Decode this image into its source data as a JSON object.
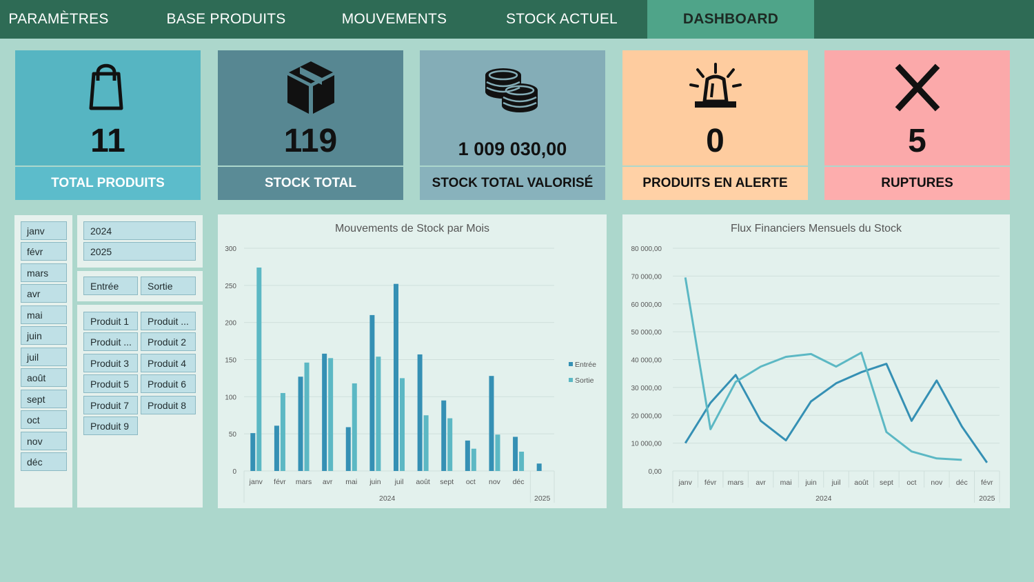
{
  "nav": {
    "tabs": [
      {
        "label": "PARAMÈTRES"
      },
      {
        "label": "BASE PRODUITS"
      },
      {
        "label": "MOUVEMENTS"
      },
      {
        "label": "STOCK ACTUEL"
      },
      {
        "label": "DASHBOARD",
        "active": true
      }
    ]
  },
  "kpis": [
    {
      "value": "11",
      "label": "TOTAL PRODUITS",
      "icon": "shopping-bag-icon",
      "top_color": "#56b5c2",
      "label_color": "#5cbccb",
      "label_text_color": "#ffffff"
    },
    {
      "value": "119",
      "label": "STOCK TOTAL",
      "icon": "box-icon",
      "top_color": "#578792",
      "label_color": "#5a8b96",
      "label_text_color": "#ffffff"
    },
    {
      "value": "1 009 030,00",
      "label": "STOCK TOTAL VALORISÉ",
      "icon": "coins-icon",
      "top_color": "#84adb7",
      "label_color": "#88b2bc",
      "label_text_color": "#111111"
    },
    {
      "value": "0",
      "label": "PRODUITS EN ALERTE",
      "icon": "alarm-icon",
      "top_color": "#fecc9f",
      "label_color": "#ffd1a6",
      "label_text_color": "#111111"
    },
    {
      "value": "5",
      "label": "RUPTURES",
      "icon": "x-icon",
      "top_color": "#fba9aa",
      "label_color": "#fdadad",
      "label_text_color": "#111111"
    }
  ],
  "slicers": {
    "months": [
      "janv",
      "févr",
      "mars",
      "avr",
      "mai",
      "juin",
      "juil",
      "août",
      "sept",
      "oct",
      "nov",
      "déc"
    ],
    "years": [
      "2024",
      "2025"
    ],
    "types": [
      "Entrée",
      "Sortie"
    ],
    "products": [
      "Produit 1",
      "Produit ...",
      "Produit ...",
      "Produit 2",
      "Produit 3",
      "Produit 4",
      "Produit 5",
      "Produit 6",
      "Produit 7",
      "Produit 8",
      "Produit 9"
    ]
  },
  "charts": {
    "colors": {
      "entree": "#3590b4",
      "sortie": "#5cb8c4",
      "line_a": "#3590b4",
      "line_b": "#5cb8c4"
    }
  },
  "chart_data": [
    {
      "type": "bar",
      "title": "Mouvements de Stock par Mois",
      "categories": [
        "janv",
        "févr",
        "mars",
        "avr",
        "mai",
        "juin",
        "juil",
        "août",
        "sept",
        "oct",
        "nov",
        "déc",
        ""
      ],
      "groups": [
        {
          "label": "2024",
          "span": 12
        },
        {
          "label": "2025",
          "span": 1
        }
      ],
      "series": [
        {
          "name": "Entrée",
          "values": [
            51,
            61,
            127,
            158,
            59,
            210,
            252,
            157,
            95,
            41,
            128,
            46,
            10
          ]
        },
        {
          "name": "Sortie",
          "values": [
            274,
            105,
            146,
            152,
            118,
            154,
            125,
            75,
            71,
            30,
            49,
            26,
            0
          ]
        }
      ],
      "yticks": [
        "0",
        "50",
        "100",
        "150",
        "200",
        "250",
        "300"
      ],
      "ylim": [
        0,
        300
      ],
      "legend": "right"
    },
    {
      "type": "line",
      "title": "Flux Financiers Mensuels du Stock",
      "categories": [
        "janv",
        "févr",
        "mars",
        "avr",
        "mai",
        "juin",
        "juil",
        "août",
        "sept",
        "oct",
        "nov",
        "déc",
        "févr"
      ],
      "groups": [
        {
          "label": "2024",
          "span": 12
        },
        {
          "label": "2025",
          "span": 1
        }
      ],
      "series": [
        {
          "values": [
            10000,
            24500,
            34500,
            18000,
            11000,
            25000,
            31500,
            35500,
            38500,
            18000,
            32500,
            16000,
            3000
          ]
        },
        {
          "values": [
            69500,
            15000,
            32000,
            37500,
            41000,
            42000,
            37500,
            42500,
            14000,
            7000,
            4500,
            4000,
            null
          ]
        }
      ],
      "yticks": [
        "0,00",
        "10 000,00",
        "20 000,00",
        "30 000,00",
        "40 000,00",
        "50 000,00",
        "60 000,00",
        "70 000,00",
        "80 000,00"
      ],
      "ylim": [
        0,
        80000
      ]
    }
  ]
}
